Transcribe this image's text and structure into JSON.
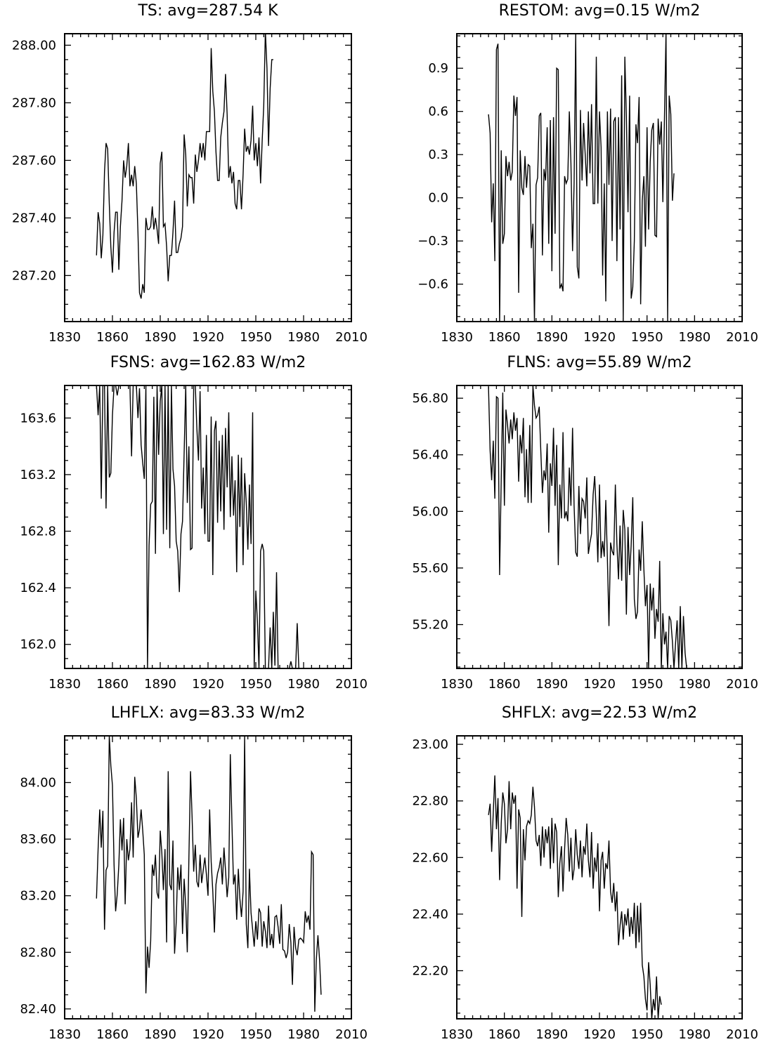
{
  "chart_data": [
    {
      "type": "line",
      "title": "TS: avg=287.54 K",
      "xlim": [
        1830,
        2010
      ],
      "ylim": [
        287.04,
        288.04
      ],
      "xticks": [
        1830,
        1860,
        1890,
        1920,
        1950,
        1980,
        2010
      ],
      "yticks": [
        287.2,
        287.4,
        287.6,
        287.8,
        288.0
      ],
      "ytick_labels": [
        "287.20",
        "287.40",
        "287.60",
        "287.80",
        "288.00"
      ],
      "x_start": 1850,
      "values": [
        287.27,
        287.42,
        287.38,
        287.26,
        287.34,
        287.56,
        287.66,
        287.64,
        287.45,
        287.3,
        287.21,
        287.35,
        287.42,
        287.42,
        287.22,
        287.37,
        287.46,
        287.6,
        287.54,
        287.58,
        287.66,
        287.51,
        287.55,
        287.51,
        287.58,
        287.52,
        287.35,
        287.14,
        287.12,
        287.17,
        287.14,
        287.4,
        287.36,
        287.36,
        287.37,
        287.44,
        287.36,
        287.4,
        287.36,
        287.31,
        287.59,
        287.63,
        287.37,
        287.38,
        287.3,
        287.18,
        287.27,
        287.27,
        287.35,
        287.46,
        287.28,
        287.28,
        287.31,
        287.33,
        287.37,
        287.69,
        287.62,
        287.44,
        287.55,
        287.54,
        287.54,
        287.45,
        287.62,
        287.56,
        287.6,
        287.66,
        287.61,
        287.66,
        287.6,
        287.7,
        287.7,
        287.7,
        287.99,
        287.84,
        287.77,
        287.63,
        287.53,
        287.53,
        287.68,
        287.73,
        287.77,
        287.9,
        287.76,
        287.54,
        287.58,
        287.52,
        287.56,
        287.45,
        287.43,
        287.53,
        287.53,
        287.43,
        287.55,
        287.71,
        287.63,
        287.65,
        287.62,
        287.67,
        287.79,
        287.6,
        287.66,
        287.58,
        287.68,
        287.52,
        287.67,
        287.79,
        288.05,
        287.92,
        287.65,
        287.85,
        287.95,
        287.95
      ]
    },
    {
      "type": "line",
      "title": "RESTOM: avg=0.15 W/m2",
      "xlim": [
        1830,
        2010
      ],
      "ylim": [
        -0.86,
        1.14
      ],
      "xticks": [
        1830,
        1860,
        1890,
        1920,
        1950,
        1980,
        2010
      ],
      "yticks": [
        -0.6,
        -0.3,
        0.0,
        0.3,
        0.6,
        0.9
      ],
      "ytick_labels": [
        "−0.6",
        "−0.3",
        "0.0",
        "0.3",
        "0.6",
        "0.9"
      ],
      "x_start": 1850,
      "values": [
        0.58,
        0.45,
        -0.17,
        0.1,
        -0.44,
        1.03,
        1.07,
        -0.9,
        0.33,
        -0.32,
        -0.25,
        0.29,
        0.15,
        0.25,
        0.12,
        0.18,
        0.71,
        0.57,
        0.7,
        -0.66,
        0.33,
        0.07,
        0.02,
        0.29,
        0.07,
        0.23,
        0.22,
        -0.35,
        -0.18,
        -0.86,
        0.09,
        0.14,
        0.57,
        0.59,
        -0.4,
        0.2,
        0.12,
        0.49,
        -0.32,
        0.54,
        -0.51,
        0.56,
        -0.25,
        0.9,
        0.89,
        -0.63,
        -0.6,
        -0.65,
        0.15,
        0.1,
        0.13,
        0.6,
        0.24,
        -0.37,
        0.1,
        1.14,
        -0.48,
        -0.56,
        0.61,
        0.12,
        0.52,
        0.3,
        0.08,
        0.6,
        0.17,
        0.65,
        -0.04,
        -0.04,
        0.98,
        -0.04,
        0.6,
        0.35,
        -0.54,
        0.1,
        -0.72,
        0.6,
        0.09,
        0.62,
        -0.3,
        0.53,
        0.56,
        -0.44,
        0.56,
        -0.22,
        0.85,
        -0.86,
        0.98,
        0.56,
        -0.1,
        0.71,
        -0.7,
        -0.62,
        -0.3,
        0.51,
        0.38,
        0.7,
        -0.74,
        -0.02,
        0.15,
        -0.34,
        0.49,
        -0.22,
        0.25,
        0.47,
        0.52,
        -0.26,
        -0.27,
        0.55,
        0.37,
        0.53,
        -0.03,
        0.56,
        1.15,
        -0.86,
        0.71,
        0.58,
        -0.02,
        0.17
      ]
    },
    {
      "type": "line",
      "title": "FSNS: avg=162.83 W/m2",
      "xlim": [
        1830,
        2010
      ],
      "ylim": [
        161.83,
        163.83
      ],
      "xticks": [
        1830,
        1860,
        1890,
        1920,
        1950,
        1980,
        2010
      ],
      "yticks": [
        162.0,
        162.4,
        162.8,
        163.2,
        163.6
      ],
      "ytick_labels": [
        "162.0",
        "162.4",
        "162.8",
        "163.2",
        "163.6"
      ],
      "x_start": 1850,
      "values": [
        163.83,
        163.62,
        163.83,
        163.03,
        163.83,
        163.83,
        162.96,
        163.83,
        163.18,
        163.21,
        163.62,
        163.83,
        163.83,
        163.76,
        163.83,
        163.83,
        163.83,
        163.83,
        163.83,
        163.83,
        163.83,
        163.83,
        163.33,
        163.83,
        163.83,
        163.83,
        163.6,
        163.81,
        163.41,
        163.28,
        163.17,
        163.83,
        161.83,
        162.7,
        162.99,
        163.01,
        163.75,
        162.64,
        163.83,
        163.34,
        163.72,
        163.83,
        162.78,
        163.83,
        162.81,
        163.83,
        162.68,
        163.83,
        163.24,
        163.12,
        162.73,
        162.66,
        162.37,
        162.78,
        162.87,
        163.35,
        163.83,
        163.0,
        163.4,
        162.67,
        162.68,
        163.83,
        163.83,
        163.53,
        163.3,
        163.79,
        162.96,
        163.25,
        162.78,
        163.48,
        162.73,
        162.73,
        163.61,
        162.49,
        163.51,
        163.58,
        162.86,
        163.44,
        162.94,
        163.48,
        162.81,
        163.53,
        163.11,
        163.64,
        162.9,
        163.33,
        162.91,
        163.16,
        162.51,
        163.34,
        162.83,
        163.32,
        162.56,
        163.21,
        163.0,
        162.67,
        163.13,
        162.71,
        163.64,
        161.83,
        162.38,
        162.16,
        161.83,
        162.66,
        162.71,
        162.66,
        161.83,
        161.83,
        161.83,
        162.12,
        161.83,
        162.23,
        161.85,
        162.51,
        161.83,
        161.83,
        161.83,
        161.83,
        161.83,
        161.83,
        161.83,
        161.83,
        161.88,
        161.83,
        161.83,
        161.83,
        162.15,
        161.83
      ]
    },
    {
      "type": "line",
      "title": "FLNS: avg=55.89 W/m2",
      "xlim": [
        1830,
        2010
      ],
      "ylim": [
        54.89,
        56.89
      ],
      "xticks": [
        1830,
        1860,
        1890,
        1920,
        1950,
        1980,
        2010
      ],
      "yticks": [
        55.2,
        55.6,
        56.0,
        56.4,
        56.8
      ],
      "ytick_labels": [
        "55.20",
        "55.60",
        "56.00",
        "56.40",
        "56.80"
      ],
      "x_start": 1850,
      "values": [
        56.88,
        56.43,
        56.22,
        56.5,
        56.09,
        56.81,
        56.8,
        55.55,
        56.22,
        56.84,
        56.04,
        56.72,
        56.61,
        56.48,
        56.65,
        56.51,
        56.7,
        56.57,
        56.66,
        56.21,
        56.54,
        56.41,
        56.66,
        56.1,
        56.44,
        56.06,
        56.61,
        56.06,
        56.89,
        56.75,
        56.66,
        56.68,
        56.74,
        56.43,
        56.13,
        56.29,
        56.22,
        56.48,
        55.85,
        56.34,
        56.18,
        56.59,
        56.04,
        56.47,
        55.62,
        56.19,
        55.95,
        56.56,
        55.95,
        56.0,
        55.93,
        56.31,
        56.04,
        56.59,
        56.04,
        55.71,
        55.68,
        56.18,
        55.84,
        56.09,
        56.07,
        55.95,
        56.24,
        55.7,
        55.78,
        55.84,
        56.12,
        56.25,
        55.98,
        55.64,
        56.19,
        55.67,
        55.79,
        55.68,
        56.08,
        55.66,
        55.19,
        55.78,
        55.72,
        55.69,
        56.19,
        55.77,
        55.52,
        55.9,
        55.51,
        56.01,
        55.87,
        55.27,
        55.89,
        55.55,
        55.76,
        56.1,
        55.38,
        55.24,
        55.29,
        55.73,
        55.58,
        55.93,
        55.59,
        55.33,
        55.48,
        54.89,
        55.49,
        55.3,
        55.46,
        55.1,
        55.31,
        55.22,
        55.65,
        54.89,
        55.28,
        55.06,
        55.15,
        54.89,
        55.26,
        55.23,
        55.08,
        54.89,
        55.07,
        55.23,
        54.89,
        55.33,
        54.89,
        55.26,
        55.0,
        54.89
      ]
    },
    {
      "type": "line",
      "title": "LHFLX: avg=83.33 W/m2",
      "xlim": [
        1830,
        2010
      ],
      "ylim": [
        82.33,
        84.33
      ],
      "xticks": [
        1830,
        1860,
        1890,
        1920,
        1950,
        1980,
        2010
      ],
      "yticks": [
        82.4,
        82.8,
        83.2,
        83.6,
        84.0
      ],
      "ytick_labels": [
        "82.40",
        "82.80",
        "83.20",
        "83.60",
        "84.00"
      ],
      "x_start": 1850,
      "values": [
        83.18,
        83.53,
        83.81,
        83.54,
        83.8,
        82.96,
        83.38,
        83.41,
        84.33,
        84.12,
        83.98,
        83.42,
        83.09,
        83.21,
        83.42,
        83.74,
        83.52,
        83.75,
        83.14,
        83.6,
        83.45,
        83.53,
        83.86,
        83.47,
        84.04,
        83.89,
        83.61,
        83.67,
        83.81,
        83.66,
        83.49,
        82.51,
        82.84,
        82.69,
        82.88,
        83.42,
        83.34,
        83.49,
        83.22,
        83.18,
        83.66,
        83.5,
        83.24,
        83.53,
        82.87,
        84.08,
        83.28,
        83.24,
        83.59,
        82.79,
        83.01,
        83.4,
        83.24,
        83.42,
        82.93,
        83.32,
        83.13,
        82.8,
        83.47,
        84.08,
        83.76,
        83.37,
        83.56,
        83.3,
        83.26,
        83.49,
        83.29,
        83.38,
        83.47,
        83.35,
        83.2,
        83.81,
        83.44,
        83.23,
        82.94,
        83.28,
        83.36,
        83.4,
        83.47,
        83.28,
        83.54,
        83.38,
        83.19,
        83.33,
        84.2,
        83.72,
        83.28,
        83.35,
        83.03,
        83.39,
        83.18,
        83.05,
        83.23,
        84.33,
        83.0,
        82.83,
        83.39,
        83.08,
        82.96,
        82.84,
        83.02,
        82.89,
        83.11,
        83.08,
        82.84,
        83.02,
        82.95,
        82.83,
        83.13,
        82.85,
        82.93,
        82.83,
        83.05,
        83.06,
        82.98,
        82.86,
        83.14,
        82.82,
        82.81,
        82.76,
        82.8,
        83.0,
        82.87,
        82.57,
        82.98,
        82.83,
        82.78,
        82.89,
        82.9,
        82.89,
        82.87,
        83.09,
        83.01,
        83.06,
        82.96,
        83.51,
        83.49,
        82.38,
        82.75,
        82.92,
        82.75,
        82.5
      ]
    },
    {
      "type": "line",
      "title": "SHFLX: avg=22.53 W/m2",
      "xlim": [
        1830,
        2010
      ],
      "ylim": [
        22.03,
        23.03
      ],
      "xticks": [
        1830,
        1860,
        1890,
        1920,
        1950,
        1980,
        2010
      ],
      "yticks": [
        22.2,
        22.4,
        22.6,
        22.8,
        23.0
      ],
      "ytick_labels": [
        "22.20",
        "22.40",
        "22.60",
        "22.80",
        "23.00"
      ],
      "x_start": 1850,
      "values": [
        22.75,
        22.79,
        22.62,
        22.76,
        22.89,
        22.7,
        22.81,
        22.52,
        22.72,
        22.83,
        22.79,
        22.65,
        22.7,
        22.87,
        22.7,
        22.83,
        22.79,
        22.82,
        22.49,
        22.77,
        22.74,
        22.39,
        22.7,
        22.59,
        22.71,
        22.73,
        22.72,
        22.75,
        22.85,
        22.78,
        22.66,
        22.64,
        22.68,
        22.57,
        22.71,
        22.6,
        22.7,
        22.65,
        22.71,
        22.56,
        22.74,
        22.58,
        22.72,
        22.69,
        22.46,
        22.58,
        22.64,
        22.48,
        22.63,
        22.74,
        22.68,
        22.55,
        22.67,
        22.52,
        22.56,
        22.7,
        22.61,
        22.56,
        22.66,
        22.53,
        22.64,
        22.61,
        22.72,
        22.59,
        22.53,
        22.69,
        22.49,
        22.6,
        22.55,
        22.65,
        22.41,
        22.59,
        22.62,
        22.49,
        22.58,
        22.56,
        22.66,
        22.48,
        22.44,
        22.51,
        22.41,
        22.48,
        22.29,
        22.36,
        22.41,
        22.31,
        22.4,
        22.36,
        22.42,
        22.32,
        22.39,
        22.33,
        22.44,
        22.28,
        22.43,
        22.3,
        22.44,
        22.22,
        22.18,
        22.1,
        22.06,
        22.23,
        22.15,
        22.03,
        22.1,
        22.06,
        22.18,
        22.03,
        22.11,
        22.08
      ]
    }
  ]
}
